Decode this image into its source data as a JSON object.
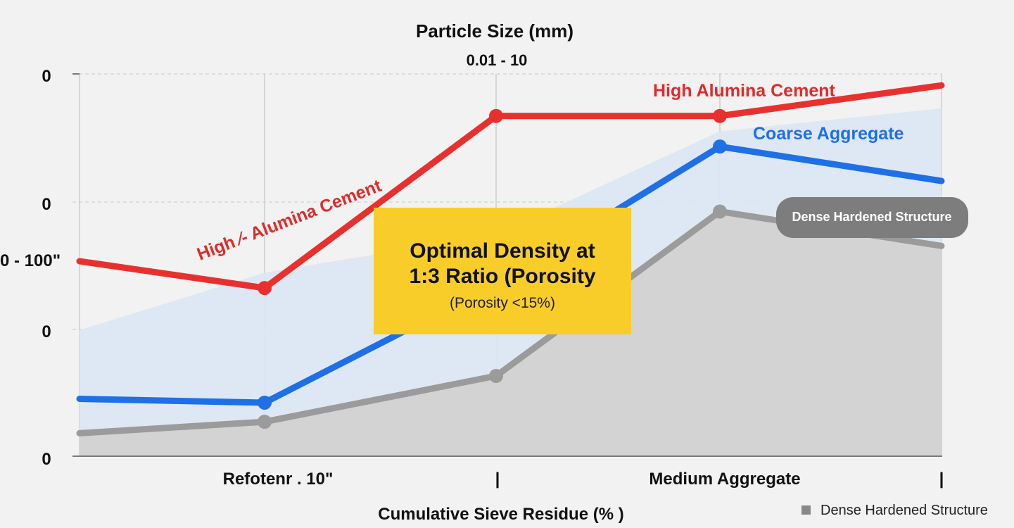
{
  "chart_data": {
    "type": "line",
    "title": "Particle Size (mm)",
    "subtitle": "0.01 - 10",
    "xlabel": "Cumulative Sieve Residue (% )",
    "ylabel_tick": "0 - 100\"",
    "x_tick_labels": [
      "Refotenr . 10\"",
      "|",
      "Medium Aggregate",
      "|"
    ],
    "y_tick_labels": [
      "0",
      "0",
      "0",
      "0"
    ],
    "x": [
      0,
      1,
      2,
      3,
      4
    ],
    "ylim": [
      0,
      100
    ],
    "grid": true,
    "series": [
      {
        "name": "High Alumina Cement",
        "color": "#e8312f",
        "type": "line",
        "markers": [
          1,
          2,
          3
        ],
        "values": [
          51,
          44,
          89,
          89,
          97
        ]
      },
      {
        "name": "Coarse Aggregate",
        "color": "#1f6fe6",
        "type": "line",
        "markers": [
          1,
          3
        ],
        "values": [
          15,
          14,
          45,
          81,
          72
        ]
      },
      {
        "name": "Dense Hardened Structure",
        "color": "#9b9b9b",
        "type": "line+area",
        "fill": "#d3d3d3",
        "markers": [
          1,
          2,
          3
        ],
        "values": [
          6,
          9,
          21,
          64,
          55
        ]
      },
      {
        "name": "",
        "color": "#dbe7f4",
        "type": "band",
        "values": [
          33,
          48,
          58,
          85,
          91
        ]
      }
    ],
    "annotations": {
      "red_label_diag": "High ⁄- Alumina Cement",
      "red_label_top": "High Alumina Cement",
      "blue_label": "Coarse Aggregate",
      "pill": "Dense Hardened Structure",
      "callout_line1": "Optimal Density at",
      "callout_line2": "1:3 Ratio (Porosity",
      "callout_line3": "(Porosity <15%)"
    },
    "legend": [
      {
        "label": "Dense Hardened Structure",
        "color": "#888888",
        "position": "bottom-right"
      }
    ],
    "colors": {
      "callout": "#f8cd2a",
      "pill": "#7d7d7d",
      "grid": "#c8c8c8",
      "axis": "#7a7a7a"
    }
  }
}
